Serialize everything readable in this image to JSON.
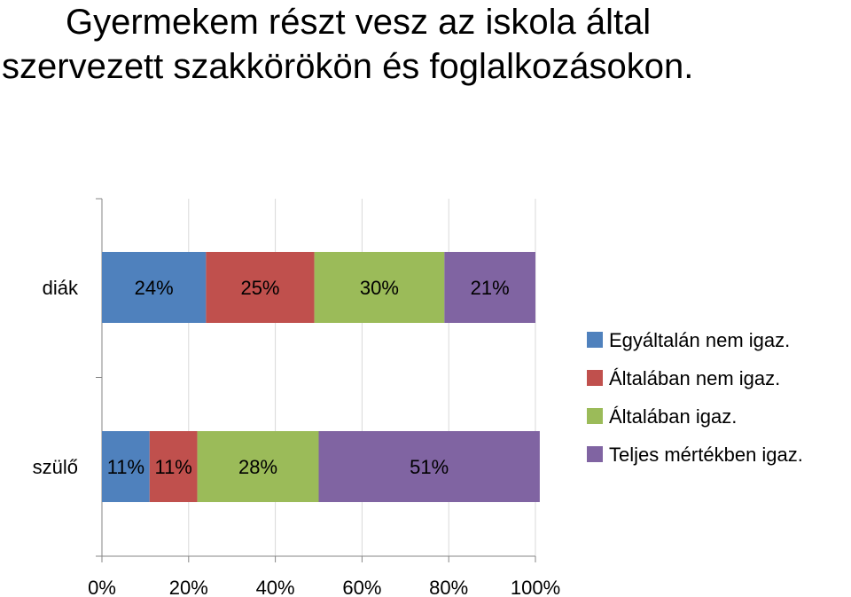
{
  "title_lines": [
    "Gyermekem részt vesz az iskola által",
    "szervezett szakkörökön és foglalkozásokon."
  ],
  "chart_data": {
    "type": "bar",
    "orientation": "horizontal",
    "stacked": true,
    "title": "Gyermekem részt vesz az iskola által szervezett szakkörökön és foglalkozásokon.",
    "categories": [
      "diák",
      "szülő"
    ],
    "series": [
      {
        "name": "Egyáltalán nem igaz.",
        "color": "#4F81BD",
        "values": [
          24,
          11
        ],
        "labels": [
          "24%",
          "11%"
        ]
      },
      {
        "name": "Általában nem igaz.",
        "color": "#C0504D",
        "values": [
          25,
          11
        ],
        "labels": [
          "25%",
          "11%"
        ]
      },
      {
        "name": "Általában igaz.",
        "color": "#9BBB59",
        "values": [
          30,
          28
        ],
        "labels": [
          "30%",
          "28%"
        ]
      },
      {
        "name": "Teljes mértékben igaz.",
        "color": "#8064A2",
        "values": [
          21,
          51
        ],
        "labels": [
          "21%",
          "51%"
        ]
      }
    ],
    "xlim": [
      0,
      100
    ],
    "xticks": [
      "0%",
      "20%",
      "40%",
      "60%",
      "80%",
      "100%"
    ],
    "grid": true,
    "legend": "right"
  }
}
